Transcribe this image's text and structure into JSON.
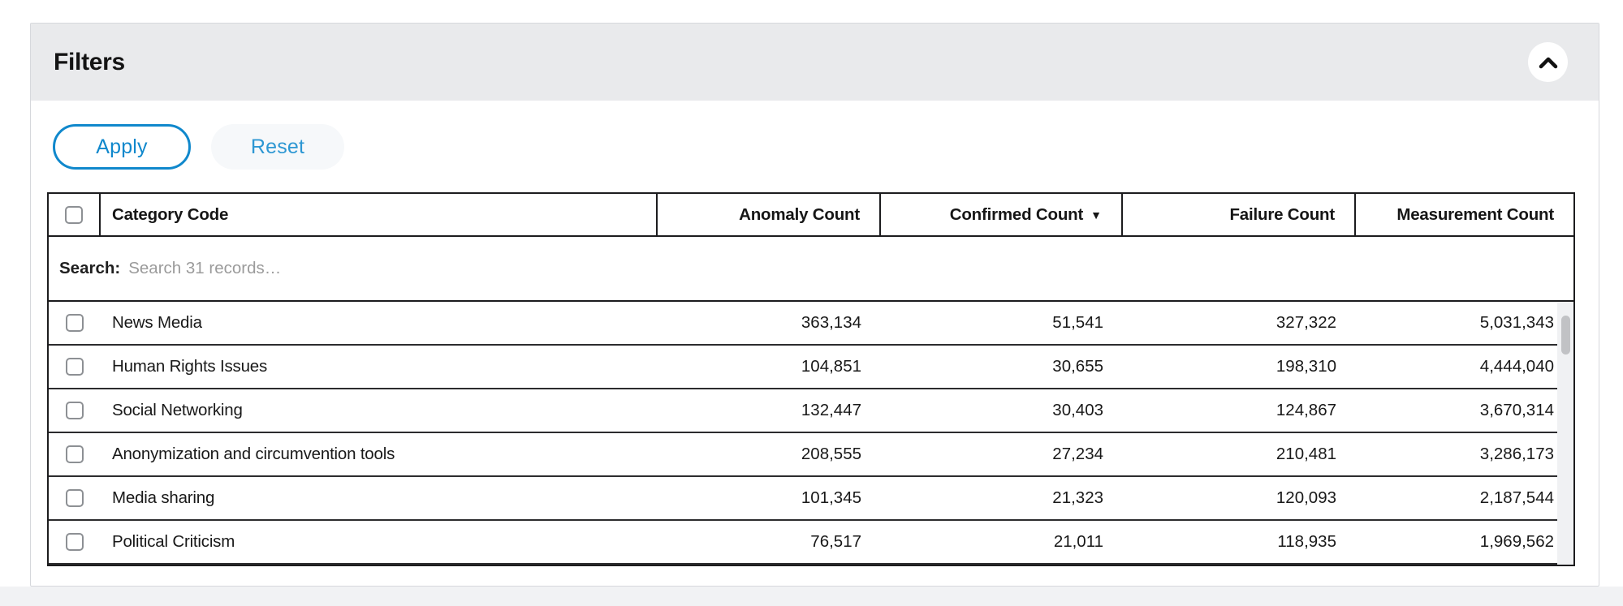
{
  "panel": {
    "title": "Filters",
    "collapse_icon": "chevron-up"
  },
  "toolbar": {
    "apply_label": "Apply",
    "reset_label": "Reset"
  },
  "table": {
    "search_label": "Search:",
    "search_placeholder": "Search 31 records…",
    "search_value": "",
    "record_count": "31",
    "columns": [
      {
        "key": "category",
        "label": "Category Code",
        "align": "left"
      },
      {
        "key": "anomaly",
        "label": "Anomaly Count",
        "align": "right"
      },
      {
        "key": "confirmed",
        "label": "Confirmed Count",
        "align": "right",
        "sorted": "desc",
        "sort_icon": "▼"
      },
      {
        "key": "failure",
        "label": "Failure Count",
        "align": "right"
      },
      {
        "key": "measurement",
        "label": "Measurement Count",
        "align": "right"
      }
    ],
    "rows": [
      {
        "category": "News Media",
        "anomaly": "363,134",
        "confirmed": "51,541",
        "failure": "327,322",
        "measurement": "5,031,343",
        "checked": false
      },
      {
        "category": "Human Rights Issues",
        "anomaly": "104,851",
        "confirmed": "30,655",
        "failure": "198,310",
        "measurement": "4,444,040",
        "checked": false
      },
      {
        "category": "Social Networking",
        "anomaly": "132,447",
        "confirmed": "30,403",
        "failure": "124,867",
        "measurement": "3,670,314",
        "checked": false
      },
      {
        "category": "Anonymization and circumvention tools",
        "anomaly": "208,555",
        "confirmed": "27,234",
        "failure": "210,481",
        "measurement": "3,286,173",
        "checked": false
      },
      {
        "category": "Media sharing",
        "anomaly": "101,345",
        "confirmed": "21,323",
        "failure": "120,093",
        "measurement": "2,187,544",
        "checked": false
      },
      {
        "category": "Political Criticism",
        "anomaly": "76,517",
        "confirmed": "21,011",
        "failure": "118,935",
        "measurement": "1,969,562",
        "checked": false
      }
    ]
  },
  "colors": {
    "accent_blue": "#1088cc",
    "panel_header_bg": "#e9eaec",
    "panel_border": "#d6d8dc",
    "table_border": "#1c1c1e",
    "row_border": "#2c2c2e",
    "placeholder_gray": "#9b9b9b",
    "reset_bg": "#f6f8fa",
    "scroll_track": "#f0f1f3",
    "scroll_thumb": "#c1c2c5"
  }
}
